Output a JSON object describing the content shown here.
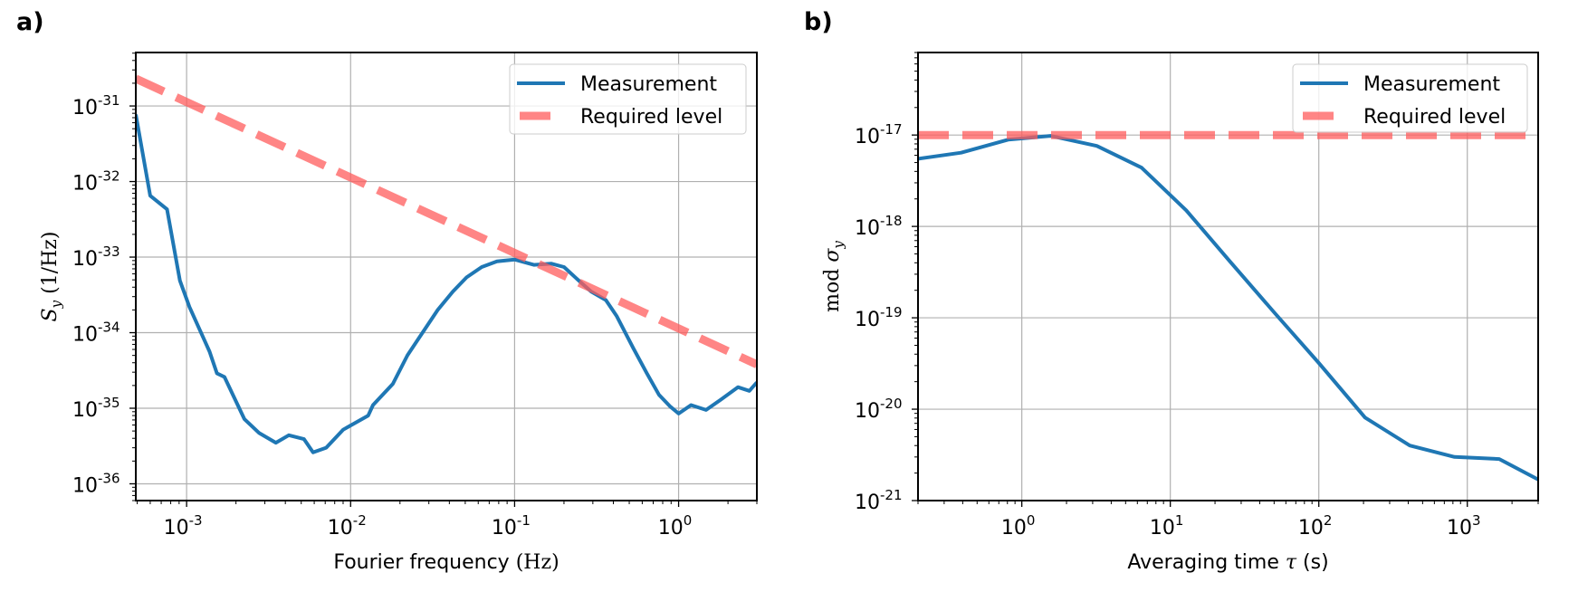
{
  "figure": {
    "panels": [
      "a)",
      "b)"
    ]
  },
  "chart_data": [
    {
      "type": "line",
      "panel_label": "a)",
      "title": "",
      "xlabel": "Fourier frequency (Hz)",
      "xlabel_text": "Fourier frequency",
      "xlabel_unit": "(Hz)",
      "ylabel": "S_y (1/Hz)",
      "ylabel_symbol": "S",
      "ylabel_sub": "y",
      "ylabel_unit": "(1/Hz)",
      "xscale": "log",
      "yscale": "log",
      "xlim": [
        0.00049,
        3.0
      ],
      "ylim": [
        6e-37,
        5.1e-31
      ],
      "grid": true,
      "legend": "top-right",
      "xticks": [
        {
          "value": 0.001,
          "base": "10",
          "exp": "-3"
        },
        {
          "value": 0.01,
          "base": "10",
          "exp": "-2"
        },
        {
          "value": 0.1,
          "base": "10",
          "exp": "-1"
        },
        {
          "value": 1,
          "base": "10",
          "exp": "0"
        }
      ],
      "yticks": [
        {
          "value": 1e-31,
          "base": "10",
          "exp": "-31"
        },
        {
          "value": 1e-32,
          "base": "10",
          "exp": "-32"
        },
        {
          "value": 1e-33,
          "base": "10",
          "exp": "-33"
        },
        {
          "value": 1e-34,
          "base": "10",
          "exp": "-34"
        },
        {
          "value": 1e-35,
          "base": "10",
          "exp": "-35"
        },
        {
          "value": 1e-36,
          "base": "10",
          "exp": "-36"
        }
      ],
      "series": [
        {
          "name": "Measurement",
          "color": "#1f77b4",
          "style": "solid",
          "x": [
            0.00049,
            0.0006,
            0.00076,
            0.00091,
            0.00104,
            0.00138,
            0.00153,
            0.0017,
            0.00225,
            0.00277,
            0.0035,
            0.0042,
            0.0052,
            0.0059,
            0.0071,
            0.009,
            0.0128,
            0.0137,
            0.0181,
            0.0222,
            0.028,
            0.034,
            0.042,
            0.051,
            0.063,
            0.078,
            0.1,
            0.131,
            0.167,
            0.2,
            0.246,
            0.293,
            0.36,
            0.42,
            0.53,
            0.64,
            0.76,
            0.89,
            1.0,
            1.19,
            1.47,
            1.81,
            2.3,
            2.7,
            3.0
          ],
          "y": [
            7.7e-32,
            6.5e-33,
            4.3e-33,
            4.9e-34,
            2.2e-34,
            5.6e-35,
            2.9e-35,
            2.6e-35,
            7.2e-36,
            4.7e-36,
            3.5e-36,
            4.4e-36,
            3.9e-36,
            2.6e-36,
            3e-36,
            5.2e-36,
            8e-36,
            1.1e-35,
            2.1e-35,
            5e-35,
            1.07e-34,
            2e-34,
            3.5e-34,
            5.4e-34,
            7.4e-34,
            8.8e-34,
            9.3e-34,
            7.9e-34,
            8.2e-34,
            7.4e-34,
            4.9e-34,
            3.5e-34,
            2.7e-34,
            1.65e-34,
            6.2e-35,
            2.9e-35,
            1.5e-35,
            1.05e-35,
            8.5e-36,
            1.1e-35,
            9.5e-36,
            1.3e-35,
            1.9e-35,
            1.7e-35,
            2.2e-35
          ]
        },
        {
          "name": "Required level",
          "color": "#ff7f7f",
          "style": "dashed",
          "x": [
            0.00049,
            3.0
          ],
          "y": [
            2.3e-31,
            3.8e-35
          ]
        }
      ]
    },
    {
      "type": "line",
      "panel_label": "b)",
      "title": "",
      "xlabel": "Averaging time τ (s)",
      "xlabel_text": "Averaging time",
      "xlabel_symbol": "τ",
      "xlabel_unit": "(s)",
      "ylabel": "mod σ_y",
      "ylabel_prefix": "mod",
      "ylabel_symbol": "σ",
      "ylabel_sub": "y",
      "xscale": "log",
      "yscale": "log",
      "xlim": [
        0.2,
        3000
      ],
      "ylim": [
        1e-21,
        8e-17
      ],
      "grid": true,
      "legend": "top-right",
      "xticks": [
        {
          "value": 1,
          "base": "10",
          "exp": "0"
        },
        {
          "value": 10,
          "base": "10",
          "exp": "1"
        },
        {
          "value": 100,
          "base": "10",
          "exp": "2"
        },
        {
          "value": 1000,
          "base": "10",
          "exp": "3"
        }
      ],
      "yticks": [
        {
          "value": 1e-17,
          "base": "10",
          "exp": "-17"
        },
        {
          "value": 1e-18,
          "base": "10",
          "exp": "-18"
        },
        {
          "value": 1e-19,
          "base": "10",
          "exp": "-19"
        },
        {
          "value": 1e-20,
          "base": "10",
          "exp": "-20"
        },
        {
          "value": 1e-21,
          "base": "10",
          "exp": "-21"
        }
      ],
      "series": [
        {
          "name": "Measurement",
          "color": "#1f77b4",
          "style": "solid",
          "x": [
            0.2,
            0.39,
            0.81,
            1.56,
            3.2,
            6.4,
            12.8,
            25,
            50,
            100,
            205,
            410,
            820,
            1640,
            3000
          ],
          "y": [
            5.5e-18,
            6.4e-18,
            8.9e-18,
            9.8e-18,
            7.6e-18,
            4.4e-18,
            1.5e-18,
            4.2e-19,
            1.15e-19,
            3.2e-20,
            8.1e-21,
            4e-21,
            3e-21,
            2.85e-21,
            1.7e-21
          ]
        },
        {
          "name": "Required level",
          "color": "#ff7f7f",
          "style": "dashed",
          "x": [
            0.2,
            3000
          ],
          "y": [
            1e-17,
            1e-17
          ]
        }
      ]
    }
  ]
}
